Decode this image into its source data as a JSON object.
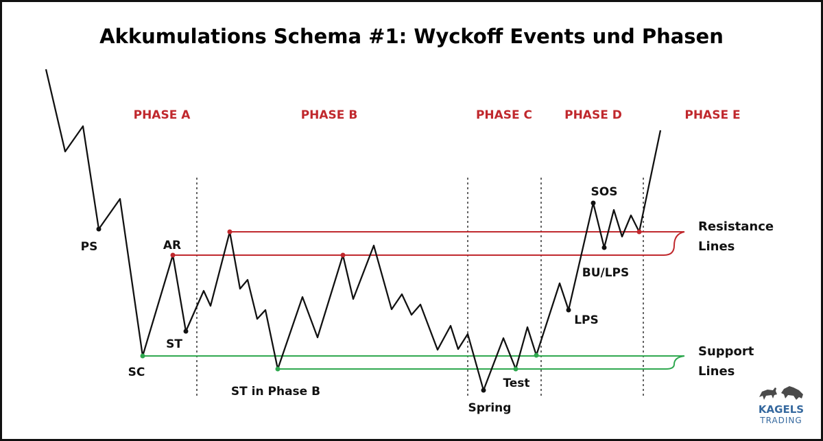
{
  "title": "Akkumulations Schema #1: Wyckoff Events und Phasen",
  "phases": [
    "PHASE A",
    "PHASE B",
    "PHASE C",
    "PHASE D",
    "PHASE E"
  ],
  "events": {
    "ps": "PS",
    "sc": "SC",
    "ar": "AR",
    "st": "ST",
    "st_phase_b": "ST in Phase B",
    "spring": "Spring",
    "test": "Test",
    "sos": "SOS",
    "lps": "LPS",
    "bu_lps": "BU/LPS"
  },
  "lines": {
    "resistance_line1": "Resistance",
    "resistance_line2": "Lines",
    "support_line1": "Support",
    "support_line2": "Lines"
  },
  "colors": {
    "resistance": "#c0282d",
    "support": "#2fa84f",
    "phase": "#c0282d",
    "brand": "#35689e"
  },
  "brand": {
    "name": "KAGELS",
    "sub": "TRADING",
    "icon": "bull-bear-logo-icon"
  }
}
